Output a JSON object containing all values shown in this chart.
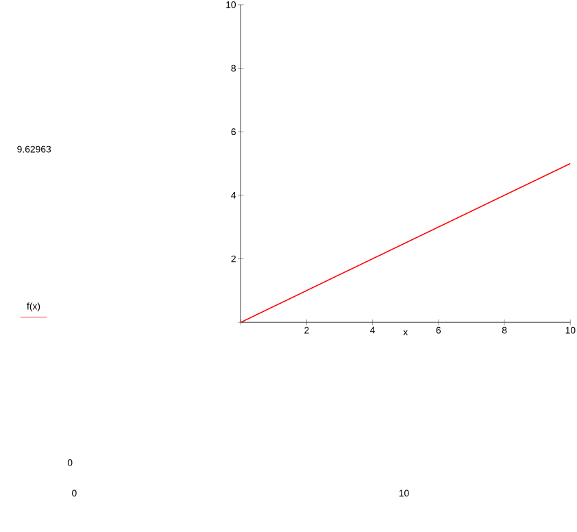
{
  "chart_data": {
    "type": "line",
    "xlabel": "x",
    "x": [
      0,
      10
    ],
    "series": [
      {
        "name": "f(x)",
        "color": "#ff0000",
        "values": [
          0,
          5
        ]
      }
    ],
    "xlim": [
      0,
      10
    ],
    "ylim": [
      0,
      10
    ],
    "xticks": [
      {
        "value": 0,
        "label": null
      },
      2,
      4,
      6,
      8,
      10
    ],
    "yticks": [
      {
        "value": 0,
        "label": null
      },
      2,
      4,
      6,
      8,
      10
    ],
    "legend": "left",
    "grid": false,
    "annotations": [
      "9.62963",
      "0",
      "0",
      "10"
    ]
  }
}
